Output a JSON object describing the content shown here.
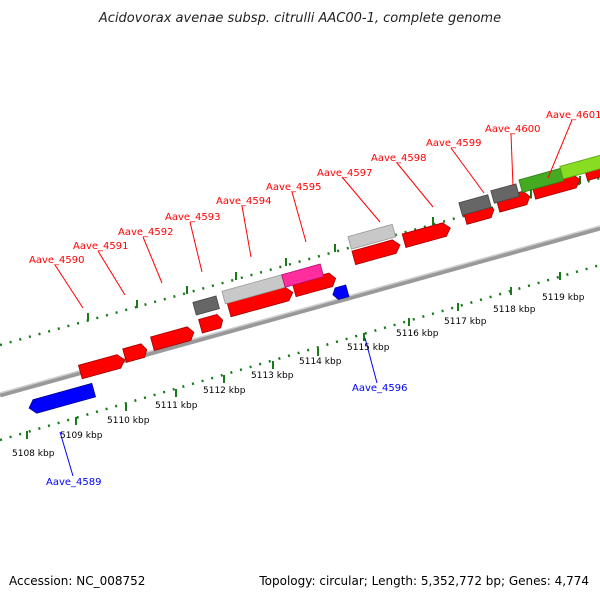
{
  "title": "Acidovorax avenae subsp. citrulli AAC00-1, complete genome",
  "footer": {
    "accession": "Accession: NC_008752",
    "topology": "Topology: circular; Length: 5,352,772 bp; Genes: 4,774"
  },
  "colors": {
    "forward_gene": "#ff0000",
    "reverse_gene": "#0000ff",
    "pseudo_gene": "#666666",
    "light_gray_feature": "#c8c8c8",
    "magenta_feature": "#ff2d9e",
    "green_feature": "#44aa22",
    "backbone": "#888888",
    "tick_green": "#1a7a1a"
  },
  "kbp_labels": [
    "5108 kbp",
    "5109 kbp",
    "5110 kbp",
    "5111 kbp",
    "5112 kbp",
    "5113 kbp",
    "5114 kbp",
    "5115 kbp",
    "5116 kbp",
    "5117 kbp",
    "5118 kbp",
    "5119 kbp"
  ],
  "gene_labels_forward": [
    "Aave_4590",
    "Aave_4591",
    "Aave_4592",
    "Aave_4593",
    "Aave_4594",
    "Aave_4595",
    "Aave_4597",
    "Aave_4598",
    "Aave_4599",
    "Aave_4600",
    "Aave_4601"
  ],
  "gene_labels_reverse": [
    "Aave_4589",
    "Aave_4596"
  ]
}
